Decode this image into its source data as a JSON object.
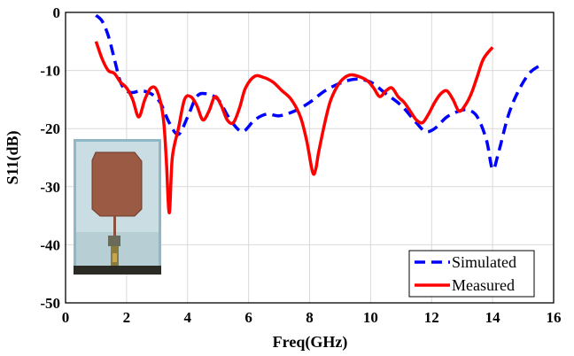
{
  "chart_data": {
    "type": "line",
    "xlabel": "Freq(GHz)",
    "ylabel": "S11(dB)",
    "xlim": [
      0,
      16
    ],
    "ylim": [
      -50,
      0
    ],
    "xticks": [
      0,
      2,
      4,
      6,
      8,
      10,
      12,
      14,
      16
    ],
    "yticks": [
      0,
      -10,
      -20,
      -30,
      -40,
      -50
    ],
    "grid": true,
    "legend_position": "bottom-right",
    "inset": "photo of fabricated antenna prototype (bottom-left)",
    "series": [
      {
        "name": "Simulated",
        "color": "#0000ff",
        "style": "dashed",
        "x": [
          1.0,
          1.2,
          1.4,
          1.6,
          1.8,
          2.0,
          2.2,
          2.5,
          2.8,
          3.1,
          3.4,
          3.7,
          4.0,
          4.3,
          4.6,
          5.0,
          5.4,
          5.8,
          6.2,
          6.6,
          7.0,
          7.5,
          8.0,
          8.5,
          9.0,
          9.5,
          10.0,
          10.5,
          11.0,
          11.5,
          11.8,
          12.1,
          12.5,
          12.9,
          13.2,
          13.5,
          13.8,
          14.0,
          14.2,
          14.5,
          14.8,
          15.2,
          15.6
        ],
        "y": [
          -0.5,
          -1.5,
          -4,
          -8,
          -12,
          -13.5,
          -13.8,
          -13.5,
          -14,
          -15.5,
          -19,
          -21,
          -18,
          -14.5,
          -14,
          -15,
          -18.5,
          -20.5,
          -18.5,
          -17.5,
          -17.8,
          -17,
          -15.5,
          -13.5,
          -12.2,
          -11.5,
          -12,
          -14,
          -16,
          -19,
          -20.5,
          -20,
          -18,
          -17,
          -16.8,
          -18,
          -22,
          -27,
          -24,
          -18,
          -14,
          -10.5,
          -9
        ]
      },
      {
        "name": "Measured",
        "color": "#ff0000",
        "style": "solid",
        "x": [
          1.0,
          1.2,
          1.4,
          1.6,
          1.8,
          2.0,
          2.2,
          2.4,
          2.6,
          2.8,
          3.0,
          3.2,
          3.3,
          3.4,
          3.5,
          3.7,
          3.9,
          4.1,
          4.3,
          4.5,
          4.7,
          4.9,
          5.1,
          5.3,
          5.5,
          5.7,
          5.9,
          6.2,
          6.5,
          6.8,
          7.1,
          7.4,
          7.7,
          7.9,
          8.1,
          8.2,
          8.3,
          8.5,
          8.7,
          9.0,
          9.3,
          9.6,
          9.9,
          10.1,
          10.3,
          10.5,
          10.7,
          10.9,
          11.1,
          11.3,
          11.5,
          11.7,
          11.9,
          12.1,
          12.3,
          12.5,
          12.7,
          12.9,
          13.1,
          13.3,
          13.5,
          13.7,
          14.0
        ],
        "y": [
          -5,
          -8,
          -10,
          -10.5,
          -12,
          -13,
          -15,
          -18,
          -15,
          -13,
          -13.5,
          -18,
          -25,
          -34.5,
          -25,
          -20,
          -15,
          -14.5,
          -16,
          -18.5,
          -17,
          -14.5,
          -16,
          -18.5,
          -19,
          -16.5,
          -13,
          -11,
          -11.2,
          -12,
          -13.5,
          -15,
          -18,
          -22,
          -27.5,
          -27,
          -24,
          -19,
          -15,
          -12,
          -10.8,
          -11,
          -11.8,
          -13,
          -14.5,
          -13.5,
          -13,
          -14.5,
          -15.5,
          -17,
          -18.5,
          -19,
          -17.5,
          -15.5,
          -14,
          -13.5,
          -15,
          -17,
          -16,
          -14,
          -11,
          -8,
          -6
        ]
      }
    ]
  },
  "legend": {
    "simulated_label": "Simulated",
    "measured_label": "Measured"
  },
  "axes": {
    "xlabel": "Freq(GHz)",
    "ylabel": "S11(dB)"
  },
  "colors": {
    "simulated": "#0000ff",
    "measured": "#ff0000",
    "grid": "#d9d9d9"
  }
}
